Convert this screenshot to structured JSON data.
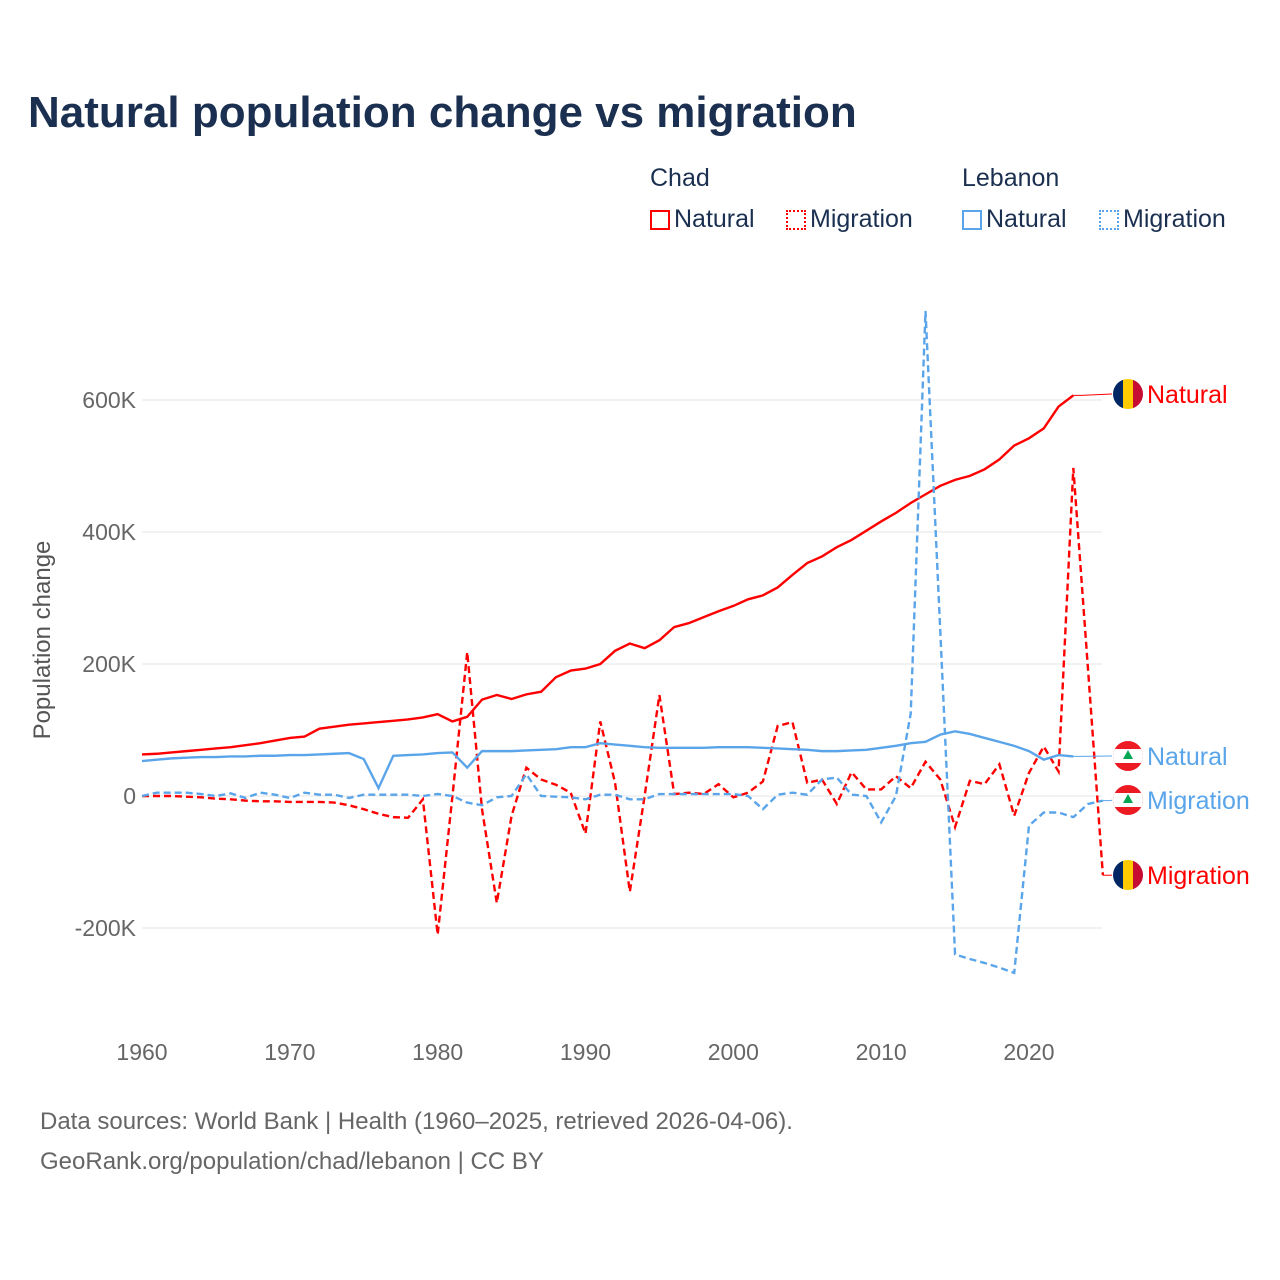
{
  "title": "Natural population change vs migration",
  "legend": {
    "groups": [
      {
        "name": "Chad",
        "items": [
          {
            "label": "Natural",
            "style": "solid"
          },
          {
            "label": "Migration",
            "style": "dotted"
          }
        ],
        "color": "#ff0000"
      },
      {
        "name": "Lebanon",
        "items": [
          {
            "label": "Natural",
            "style": "solid"
          },
          {
            "label": "Migration",
            "style": "dotted"
          }
        ],
        "color": "#5aa5ea"
      }
    ]
  },
  "footer": {
    "line1": "Data sources: World Bank | Health (1960–2025, retrieved 2026-04-06).",
    "line2": "GeoRank.org/population/chad/lebanon | CC BY"
  },
  "chart_data": {
    "type": "line",
    "title": "Natural population change vs migration",
    "xlabel": "",
    "ylabel": "Population change",
    "xlim": [
      1960,
      2025
    ],
    "ylim": [
      -300000,
      750000
    ],
    "xticks": [
      1960,
      1970,
      1980,
      1990,
      2000,
      2010,
      2020
    ],
    "xtick_labels": [
      "1960",
      "1970",
      "1980",
      "1990",
      "2000",
      "2010",
      "2020"
    ],
    "yticks": [
      -200000,
      0,
      200000,
      400000,
      600000
    ],
    "ytick_labels": [
      "-200K",
      "0",
      "200K",
      "400K",
      "600K"
    ],
    "grid": true,
    "series": [
      {
        "name": "Chad Natural",
        "end_label": "Natural",
        "country": "Chad",
        "color": "#ff0000",
        "dash": false,
        "start": 1960,
        "values": [
          63000,
          64000,
          66000,
          68000,
          70000,
          72000,
          74000,
          77000,
          80000,
          84000,
          88000,
          90000,
          102000,
          105000,
          108000,
          110000,
          112000,
          114000,
          116000,
          119000,
          124000,
          113000,
          120000,
          146000,
          153000,
          147000,
          154000,
          158000,
          180000,
          190000,
          193000,
          200000,
          220000,
          231000,
          224000,
          236000,
          256000,
          262000,
          271000,
          280000,
          288000,
          298000,
          304000,
          316000,
          335000,
          353000,
          363000,
          377000,
          388000,
          402000,
          416000,
          429000,
          444000,
          457000,
          470000,
          479000,
          485000,
          495000,
          510000,
          531000,
          542000,
          557000,
          590000,
          607000
        ]
      },
      {
        "name": "Chad Migration",
        "end_label": "Migration",
        "country": "Chad",
        "color": "#ff0000",
        "dash": true,
        "start": 1960,
        "values": [
          0,
          0,
          0,
          -1000,
          -2000,
          -4000,
          -5000,
          -7000,
          -8000,
          -8000,
          -9000,
          -9000,
          -9000,
          -10000,
          -14000,
          -20000,
          -27000,
          -32000,
          -33000,
          -5000,
          -210000,
          0,
          218000,
          -20000,
          -162000,
          -30000,
          43000,
          25000,
          17000,
          5000,
          -57000,
          113000,
          20000,
          -145000,
          0,
          153000,
          3000,
          5000,
          3000,
          18000,
          -2000,
          5000,
          22000,
          106000,
          112000,
          20000,
          25000,
          -12000,
          36000,
          10000,
          10000,
          30000,
          12000,
          52000,
          25000,
          -47000,
          23000,
          18000,
          48000,
          -30000,
          35000,
          75000,
          37000,
          497000,
          190000,
          -120000
        ]
      },
      {
        "name": "Lebanon Natural",
        "end_label": "Natural",
        "country": "Lebanon",
        "color": "#5aa5ea",
        "dash": false,
        "start": 1960,
        "values": [
          53000,
          55000,
          57000,
          58000,
          59000,
          59000,
          60000,
          60000,
          61000,
          61000,
          62000,
          62000,
          63000,
          64000,
          65000,
          56000,
          12000,
          61000,
          62000,
          63000,
          65000,
          66000,
          43000,
          68000,
          68000,
          68000,
          69000,
          70000,
          71000,
          74000,
          74000,
          80000,
          78000,
          76000,
          74000,
          73000,
          73000,
          73000,
          73000,
          74000,
          74000,
          74000,
          73000,
          72000,
          71000,
          70000,
          68000,
          68000,
          69000,
          70000,
          73000,
          76000,
          80000,
          82000,
          93000,
          98000,
          94000,
          88000,
          82000,
          76000,
          68000,
          55000,
          62000,
          60000
        ]
      },
      {
        "name": "Lebanon Migration",
        "end_label": "Migration",
        "country": "Lebanon",
        "color": "#5aa5ea",
        "dash": true,
        "start": 1960,
        "values": [
          0,
          5000,
          5000,
          5000,
          3000,
          0,
          4000,
          -3000,
          5000,
          2000,
          -3000,
          5000,
          2000,
          2000,
          -3000,
          2000,
          2000,
          2000,
          2000,
          0,
          3000,
          0,
          -10000,
          -14000,
          -2000,
          0,
          33000,
          0,
          -1000,
          -2000,
          -5000,
          2000,
          2000,
          -5000,
          -5000,
          3000,
          3000,
          3000,
          3000,
          3000,
          3000,
          0,
          -20000,
          2000,
          5000,
          2000,
          25000,
          28000,
          2000,
          0,
          -40000,
          0,
          125000,
          735000,
          250000,
          -240000,
          -247000,
          -253000,
          -260000,
          -268000,
          -45000,
          -25000,
          -25000,
          -32000,
          -12000,
          -7000
        ]
      }
    ]
  }
}
